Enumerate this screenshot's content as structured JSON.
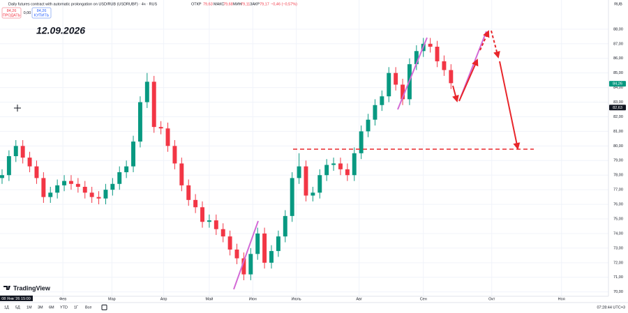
{
  "header": {
    "title": "Daily futures contract with automatic prolongation on USD/RUB (USDRUBF) · 4ч · RUS",
    "open_label": "ОТКР",
    "open": "79,63",
    "high_label": "МАКС",
    "high": "79,68",
    "low_label": "МИН",
    "low": "79,11",
    "close_label": "ЗАКР",
    "close": "79,17",
    "change": "−0,46 (−0,57%)",
    "sell_price": "84,26",
    "sell": "ПРОДАТЬ",
    "spread": "0,00",
    "buy_price": "84,26",
    "buy": "КУПИТЬ",
    "annotation": "12.09.2026",
    "logo": "TradingView"
  },
  "toolbar": {
    "ranges": [
      "1Д",
      "5Д",
      "1М",
      "3М",
      "6М",
      "YTD",
      "1Г",
      "Все"
    ],
    "clock": "07:28:44 UTC+3",
    "currency": "RUB",
    "crosshair_date": "08 Янв '26 15:00"
  },
  "chart_data": {
    "type": "candlestick",
    "up_color": "#089981",
    "down_color": "#f23645",
    "grid": true,
    "open": [
      77.8,
      78.0,
      79.3,
      80.0,
      79.2,
      78.6,
      77.8,
      76.5,
      76.8,
      77.3,
      77.6,
      77.4,
      77.2,
      76.8,
      76.5,
      76.4,
      77.0,
      77.4,
      78.2,
      78.6,
      80.3,
      83.0,
      84.4,
      81.3,
      81.2,
      80.0,
      78.8,
      77.3,
      76.3,
      75.8,
      74.8,
      74.9,
      74.3,
      73.8,
      72.9,
      72.3,
      71.2,
      72.6,
      74.0,
      72.0,
      72.8,
      73.8,
      75.2,
      77.8,
      78.6,
      76.6,
      76.8,
      78.0,
      78.7,
      78.8,
      78.4,
      78.0,
      79.5,
      81.0,
      81.8,
      82.8,
      83.4,
      85.0,
      84.2,
      83.2,
      85.6,
      86.5,
      87.0,
      86.8,
      85.8,
      85.2
    ],
    "high": [
      78.4,
      79.7,
      80.4,
      80.4,
      79.6,
      79.0,
      78.2,
      77.2,
      77.7,
      78.0,
      78.0,
      77.8,
      77.6,
      77.2,
      76.9,
      77.4,
      77.8,
      78.6,
      79.0,
      80.7,
      83.4,
      85.0,
      84.8,
      81.7,
      81.6,
      80.4,
      79.2,
      77.7,
      76.7,
      76.2,
      75.3,
      75.3,
      74.7,
      74.2,
      73.3,
      72.7,
      73.0,
      74.4,
      74.4,
      73.2,
      74.2,
      75.6,
      78.2,
      79.5,
      79.0,
      77.2,
      78.4,
      79.1,
      79.2,
      79.2,
      78.8,
      79.9,
      81.4,
      82.2,
      83.2,
      83.8,
      85.4,
      85.4,
      84.6,
      86.0,
      86.9,
      87.4,
      87.4,
      87.2,
      86.2,
      85.6
    ],
    "low": [
      77.4,
      77.6,
      78.9,
      78.8,
      78.2,
      77.4,
      76.1,
      76.1,
      76.4,
      76.9,
      77.0,
      76.8,
      76.4,
      76.1,
      76.0,
      76.0,
      76.6,
      77.0,
      77.8,
      78.2,
      79.9,
      82.6,
      80.9,
      80.8,
      79.6,
      78.4,
      76.9,
      75.9,
      75.4,
      74.4,
      74.4,
      73.9,
      73.4,
      72.5,
      71.9,
      70.8,
      70.8,
      72.2,
      71.6,
      71.6,
      72.4,
      73.4,
      74.8,
      77.4,
      76.2,
      76.2,
      76.4,
      77.6,
      78.3,
      78.0,
      77.6,
      77.6,
      79.1,
      80.6,
      81.4,
      82.4,
      83.0,
      83.8,
      82.8,
      82.8,
      85.2,
      86.1,
      86.4,
      85.4,
      84.8,
      83.9
    ],
    "close": [
      78.0,
      79.3,
      80.0,
      79.2,
      78.6,
      77.8,
      76.5,
      76.8,
      77.3,
      77.6,
      77.4,
      77.2,
      76.8,
      76.5,
      76.4,
      77.0,
      77.4,
      78.2,
      78.6,
      80.3,
      83.0,
      84.4,
      81.3,
      81.2,
      80.0,
      78.8,
      77.3,
      76.3,
      75.8,
      74.8,
      74.9,
      74.3,
      73.8,
      72.9,
      72.3,
      71.2,
      72.6,
      74.0,
      72.0,
      72.8,
      73.8,
      75.2,
      77.8,
      78.6,
      76.6,
      76.8,
      78.0,
      78.7,
      78.8,
      78.4,
      78.0,
      79.5,
      81.0,
      81.8,
      82.8,
      83.4,
      85.0,
      84.2,
      83.2,
      85.6,
      86.5,
      87.0,
      86.8,
      85.8,
      85.2,
      84.3
    ],
    "xlim": [
      -0.3,
      87.8
    ],
    "xticks": [
      {
        "value": 8.8,
        "label": "Фев"
      },
      {
        "value": 15.9,
        "label": "Мар"
      },
      {
        "value": 23.4,
        "label": "Апр"
      },
      {
        "value": 30,
        "label": "Май"
      },
      {
        "value": 36.3,
        "label": "Июн"
      },
      {
        "value": 42.6,
        "label": "Июль"
      },
      {
        "value": 51.7,
        "label": "Авг"
      },
      {
        "value": 61,
        "label": "Сен"
      },
      {
        "value": 70.9,
        "label": "Окт"
      },
      {
        "value": 81,
        "label": "Ноя"
      }
    ],
    "ylim": [
      69.7,
      90.0
    ],
    "yticks": [
      {
        "value": 70,
        "label": "70,00"
      },
      {
        "value": 71,
        "label": "71,00"
      },
      {
        "value": 72,
        "label": "72,00"
      },
      {
        "value": 73,
        "label": "73,00"
      },
      {
        "value": 74,
        "label": "74,00"
      },
      {
        "value": 75,
        "label": "75,00"
      },
      {
        "value": 76,
        "label": "76,00"
      },
      {
        "value": 77,
        "label": "77,00"
      },
      {
        "value": 78,
        "label": "78,00"
      },
      {
        "value": 79,
        "label": "79,00"
      },
      {
        "value": 80,
        "label": "80,00"
      },
      {
        "value": 81,
        "label": "81,00"
      },
      {
        "value": 82,
        "label": "82,00"
      },
      {
        "value": 83,
        "label": "83,00"
      },
      {
        "value": 84,
        "label": "84,00"
      },
      {
        "value": 85,
        "label": "85,00"
      },
      {
        "value": 86,
        "label": "86,00"
      },
      {
        "value": 87,
        "label": "87,00"
      },
      {
        "value": 88,
        "label": "88,00"
      }
    ],
    "last_price": {
      "value": 84.26,
      "label": "84,26"
    },
    "crosshair_price": {
      "value": 82.63,
      "label": "82,63"
    }
  }
}
